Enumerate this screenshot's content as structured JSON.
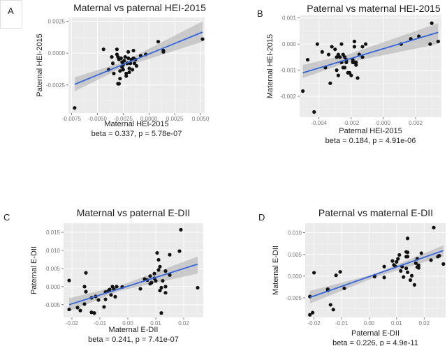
{
  "figure": {
    "panels_order": [
      "A",
      "B",
      "C",
      "D"
    ]
  },
  "chart_data": [
    {
      "panel": "A",
      "type": "scatter",
      "title": "Maternal vs paternal HEI-2015",
      "xlabel": "Maternal HEI-2015",
      "ylabel": "Paternal HEI-2015",
      "stat": "beta = 0.337, p = 5.78e-07",
      "xlim": [
        -0.0078,
        0.0054
      ],
      "ylim": [
        -0.0047,
        0.0028
      ],
      "xticks": [
        -0.0075,
        -0.005,
        -0.0025,
        0.0,
        0.0025,
        0.005
      ],
      "xtick_labels": [
        "-0.0075",
        "-0.0050",
        "-0.0025",
        "0.0000",
        "0.0025",
        "0.0050"
      ],
      "yticks": [
        -0.0025,
        0.0,
        0.0025
      ],
      "ytick_labels": [
        "-0.0025",
        "0.0000",
        "0.0025"
      ],
      "grid": true,
      "fit": {
        "x": [
          -0.0072,
          0.0052
        ],
        "y": [
          -0.00245,
          0.00165
        ]
      },
      "ci_band": {
        "x": [
          -0.0072,
          -0.0025,
          0.0052
        ],
        "lower": [
          -0.003,
          -0.0011,
          0.0009
        ],
        "upper": [
          -0.0019,
          -0.0007,
          0.0025
        ]
      },
      "points": [
        [
          -0.0072,
          -0.0043
        ],
        [
          -0.0044,
          0.0003
        ],
        [
          -0.0039,
          -0.0013
        ],
        [
          -0.0036,
          -0.0003
        ],
        [
          -0.0035,
          -0.0008
        ],
        [
          -0.0034,
          -0.0016
        ],
        [
          -0.0031,
          0.0003
        ],
        [
          -0.0031,
          -0.0001
        ],
        [
          -0.003,
          -0.0003
        ],
        [
          -0.0029,
          -0.0005
        ],
        [
          -0.0028,
          -0.0014
        ],
        [
          -0.0028,
          -0.002
        ],
        [
          -0.0029,
          -0.0024
        ],
        [
          -0.003,
          -0.0024
        ],
        [
          -0.0027,
          -0.0004
        ],
        [
          -0.0026,
          -0.0007
        ],
        [
          -0.0026,
          -0.0011
        ],
        [
          -0.0025,
          -0.0009
        ],
        [
          -0.0025,
          -0.0013
        ],
        [
          -0.0024,
          -0.0006
        ],
        [
          -0.0023,
          -0.0003
        ],
        [
          -0.0022,
          -0.0016
        ],
        [
          -0.0022,
          -0.0018
        ],
        [
          -0.0021,
          -0.0008
        ],
        [
          -0.002,
          -0.0004
        ],
        [
          -0.002,
          0.0001
        ],
        [
          -0.0019,
          -0.0012
        ],
        [
          -0.0019,
          -0.0015
        ],
        [
          -0.0018,
          -0.0008
        ],
        [
          -0.0017,
          -0.0005
        ],
        [
          -0.0016,
          -0.0013
        ],
        [
          -0.0015,
          -0.0004
        ],
        [
          -0.0015,
          0.0002
        ],
        [
          -0.0014,
          -0.0008
        ],
        [
          -0.0013,
          -0.0005
        ],
        [
          -0.0012,
          -0.001
        ],
        [
          -0.0008,
          -0.0002
        ],
        [
          -0.0003,
          -0.0001
        ],
        [
          0.0009,
          0.0009
        ],
        [
          0.0014,
          0.0001
        ],
        [
          0.0014,
          0.0002
        ],
        [
          0.0052,
          0.0011
        ]
      ]
    },
    {
      "panel": "B",
      "type": "scatter",
      "title": "Paternal vs maternal HEI-2015",
      "xlabel": "Paternal HEI-2015",
      "ylabel": "Maternal HEI-2015",
      "stat": "beta = 0.184, p = 4.91e-06",
      "xlim": [
        -0.0052,
        0.0036
      ],
      "ylim": [
        -0.0028,
        0.0011
      ],
      "xticks": [
        -0.004,
        -0.002,
        0.0,
        0.002
      ],
      "xtick_labels": [
        "-0.004",
        "-0.002",
        "0.000",
        "0.002"
      ],
      "yticks": [
        -0.002,
        -0.001,
        0.0,
        0.001
      ],
      "ytick_labels": [
        "-0.002",
        "-0.001",
        "0.000",
        "0.001"
      ],
      "grid": true,
      "fit": {
        "x": [
          -0.005,
          0.0034
        ],
        "y": [
          -0.0011,
          0.00045
        ]
      },
      "ci_band": {
        "x": [
          -0.005,
          -0.0022,
          0.0034
        ],
        "lower": [
          -0.0013,
          -0.0007,
          0.0
        ],
        "upper": [
          -0.0008,
          -0.0004,
          0.0008
        ]
      },
      "points": [
        [
          -0.005,
          -0.0018
        ],
        [
          -0.0047,
          -0.0006
        ],
        [
          -0.0043,
          -0.0026
        ],
        [
          -0.0041,
          0.0
        ],
        [
          -0.0038,
          -0.0003
        ],
        [
          -0.0036,
          -0.0009
        ],
        [
          -0.0034,
          -0.0004
        ],
        [
          -0.0033,
          -0.0015
        ],
        [
          -0.0032,
          -0.0001
        ],
        [
          -0.003,
          -0.0002
        ],
        [
          -0.0029,
          -0.0005
        ],
        [
          -0.0029,
          -0.001
        ],
        [
          -0.0028,
          -0.0004
        ],
        [
          -0.0028,
          -0.0012
        ],
        [
          -0.0027,
          -0.0005
        ],
        [
          -0.0026,
          0.0
        ],
        [
          -0.0026,
          -0.0007
        ],
        [
          -0.0025,
          -0.0009
        ],
        [
          -0.0025,
          -0.0004
        ],
        [
          -0.0024,
          -0.0009
        ],
        [
          -0.0024,
          -0.0005
        ],
        [
          -0.0023,
          -0.0006
        ],
        [
          -0.0023,
          -0.0007
        ],
        [
          -0.0022,
          -0.0011
        ],
        [
          -0.0021,
          -0.0011
        ],
        [
          -0.002,
          -0.0012
        ],
        [
          -0.0019,
          -0.0007
        ],
        [
          -0.0019,
          -0.0006
        ],
        [
          -0.0018,
          -0.0001
        ],
        [
          -0.0018,
          0.0001
        ],
        [
          -0.0018,
          -0.0007
        ],
        [
          -0.0017,
          -0.0007
        ],
        [
          -0.0017,
          -0.0008
        ],
        [
          -0.0016,
          -0.0013
        ],
        [
          -0.0015,
          -0.0004
        ],
        [
          -0.0013,
          -0.0001
        ],
        [
          -0.0013,
          -0.0005
        ],
        [
          -0.0011,
          0.0
        ],
        [
          0.0011,
          -0.0
        ],
        [
          0.0017,
          0.0002
        ],
        [
          0.0022,
          0.0003
        ],
        [
          0.0029,
          0.0
        ],
        [
          0.003,
          0.0008
        ],
        [
          0.0034,
          0.0001
        ]
      ]
    },
    {
      "panel": "C",
      "type": "scatter",
      "title": "Maternal vs paternal E-DII",
      "xlabel": "Maternal E-DII",
      "ylabel": "Paternal E-DII",
      "stat": "beta = 0.241, p = 7.41e-07",
      "xlim": [
        -0.023,
        0.027
      ],
      "ylim": [
        -0.0085,
        0.0175
      ],
      "xticks": [
        -0.02,
        -0.01,
        0.0,
        0.01,
        0.02
      ],
      "xtick_labels": [
        "-0.02",
        "-0.01",
        "0.00",
        "0.01",
        "0.02"
      ],
      "yticks": [
        -0.005,
        0.0,
        0.005,
        0.01,
        0.015
      ],
      "ytick_labels": [
        "-0.005",
        "0.000",
        "0.005",
        "0.010",
        "0.015"
      ],
      "grid": true,
      "fit": {
        "x": [
          -0.021,
          0.025
        ],
        "y": [
          -0.005,
          0.0062
        ]
      },
      "ci_band": {
        "x": [
          -0.021,
          -0.003,
          0.025
        ],
        "lower": [
          -0.0068,
          -0.0012,
          0.0036
        ],
        "upper": [
          -0.0032,
          0.0002,
          0.0083
        ]
      },
      "points": [
        [
          -0.021,
          0.0017
        ],
        [
          -0.021,
          -0.0063
        ],
        [
          -0.018,
          -0.0058
        ],
        [
          -0.017,
          -0.0066
        ],
        [
          -0.0155,
          0.0
        ],
        [
          -0.0155,
          -0.0048
        ],
        [
          -0.015,
          0.0038
        ],
        [
          -0.015,
          -0.0014
        ],
        [
          -0.013,
          -0.0031
        ],
        [
          -0.013,
          -0.0071
        ],
        [
          -0.012,
          -0.0073
        ],
        [
          -0.0115,
          -0.0027
        ],
        [
          -0.0105,
          -0.0037
        ],
        [
          -0.0085,
          -0.0056
        ],
        [
          -0.008,
          -0.0035
        ],
        [
          -0.008,
          -0.0015
        ],
        [
          -0.007,
          -0.0012
        ],
        [
          -0.0065,
          -0.0008
        ],
        [
          -0.006,
          -0.0023
        ],
        [
          -0.0055,
          0.0
        ],
        [
          -0.005,
          -0.0007
        ],
        [
          -0.0045,
          -0.0028
        ],
        [
          -0.004,
          0.0
        ],
        [
          -0.002,
          -0.0001
        ],
        [
          0.0045,
          -0.0006
        ],
        [
          0.006,
          0.0021
        ],
        [
          0.007,
          0.0018
        ],
        [
          0.008,
          0.0029
        ],
        [
          0.008,
          0.0008
        ],
        [
          0.0085,
          0.0011
        ],
        [
          0.0095,
          0.0023
        ],
        [
          0.0095,
          0.0036
        ],
        [
          0.01,
          0.0016
        ],
        [
          0.0105,
          0.0093
        ],
        [
          0.011,
          0.0074
        ],
        [
          0.011,
          0.0046
        ],
        [
          0.0115,
          0.0055
        ],
        [
          0.0115,
          -0.0011
        ],
        [
          0.012,
          -0.0003
        ],
        [
          0.012,
          -0.0073
        ],
        [
          0.0125,
          0.0016
        ],
        [
          0.0135,
          0.0043
        ],
        [
          0.0135,
          0.0
        ],
        [
          0.0135,
          -0.0017
        ],
        [
          0.015,
          0.0088
        ],
        [
          0.015,
          0.0032
        ],
        [
          0.0185,
          0.0098
        ],
        [
          0.019,
          0.0157
        ],
        [
          0.025,
          -0.0003
        ]
      ]
    },
    {
      "panel": "D",
      "type": "scatter",
      "title": "Paternal vs maternal E-DII",
      "xlabel": "Paternal E-DII",
      "ylabel": "Maternal E-DII",
      "stat": "beta = 0.226, p = 4.9e-11",
      "xlim": [
        -0.0232,
        0.0278
      ],
      "ylim": [
        -0.0095,
        0.0122
      ],
      "xticks": [
        -0.02,
        -0.01,
        0.0,
        0.01,
        0.02
      ],
      "xtick_labels": [
        "-0.02",
        "-0.01",
        "0.00",
        "0.01",
        "0.02"
      ],
      "yticks": [
        -0.005,
        0.0,
        0.005,
        0.01
      ],
      "ytick_labels": [
        "-0.005",
        "0.000",
        "0.005",
        "0.010"
      ],
      "grid": true,
      "fit": {
        "x": [
          -0.0215,
          0.027
        ],
        "y": [
          -0.0049,
          0.0059
        ]
      },
      "ci_band": {
        "x": [
          -0.0215,
          0.002,
          0.027
        ],
        "lower": [
          -0.0063,
          -0.0003,
          0.0046
        ],
        "upper": [
          -0.0034,
          0.0005,
          0.0071
        ]
      },
      "points": [
        [
          -0.0215,
          -0.0047
        ],
        [
          -0.0215,
          -0.0089
        ],
        [
          -0.0205,
          -0.0084
        ],
        [
          -0.02,
          0.0008
        ],
        [
          -0.015,
          -0.003
        ],
        [
          -0.015,
          -0.0033
        ],
        [
          -0.014,
          -0.0066
        ],
        [
          -0.013,
          -0.0077
        ],
        [
          -0.012,
          0.0002
        ],
        [
          -0.0105,
          0.001
        ],
        [
          -0.009,
          -0.0028
        ],
        [
          0.002,
          0.0001
        ],
        [
          0.002,
          -0.0001
        ],
        [
          0.0055,
          0.0022
        ],
        [
          0.0055,
          -0.0003
        ],
        [
          0.0085,
          0.0035
        ],
        [
          0.009,
          0.0026
        ],
        [
          0.0095,
          0.0023
        ],
        [
          0.01,
          0.0033
        ],
        [
          0.0105,
          0.004
        ],
        [
          0.011,
          0.0049
        ],
        [
          0.0115,
          0.0012
        ],
        [
          0.012,
          0.0022
        ],
        [
          0.0125,
          -0.0002
        ],
        [
          0.0135,
          0.0056
        ],
        [
          0.0135,
          0.0045
        ],
        [
          0.0135,
          0.0018
        ],
        [
          0.014,
          0.0087
        ],
        [
          0.014,
          0.0055
        ],
        [
          0.014,
          0.0045
        ],
        [
          0.014,
          0.0009
        ],
        [
          0.015,
          -0.0009
        ],
        [
          0.0155,
          0.0001
        ],
        [
          0.0165,
          -0.002
        ],
        [
          0.017,
          0.003
        ],
        [
          0.0175,
          0.0021
        ],
        [
          0.0175,
          0.004
        ],
        [
          0.018,
          0.0025
        ],
        [
          0.018,
          0.0019
        ],
        [
          0.019,
          0.0053
        ],
        [
          0.0225,
          0.0037
        ],
        [
          0.0235,
          0.0112
        ],
        [
          0.025,
          0.0045
        ],
        [
          0.0255,
          0.0047
        ],
        [
          0.027,
          0.0028
        ]
      ]
    }
  ]
}
